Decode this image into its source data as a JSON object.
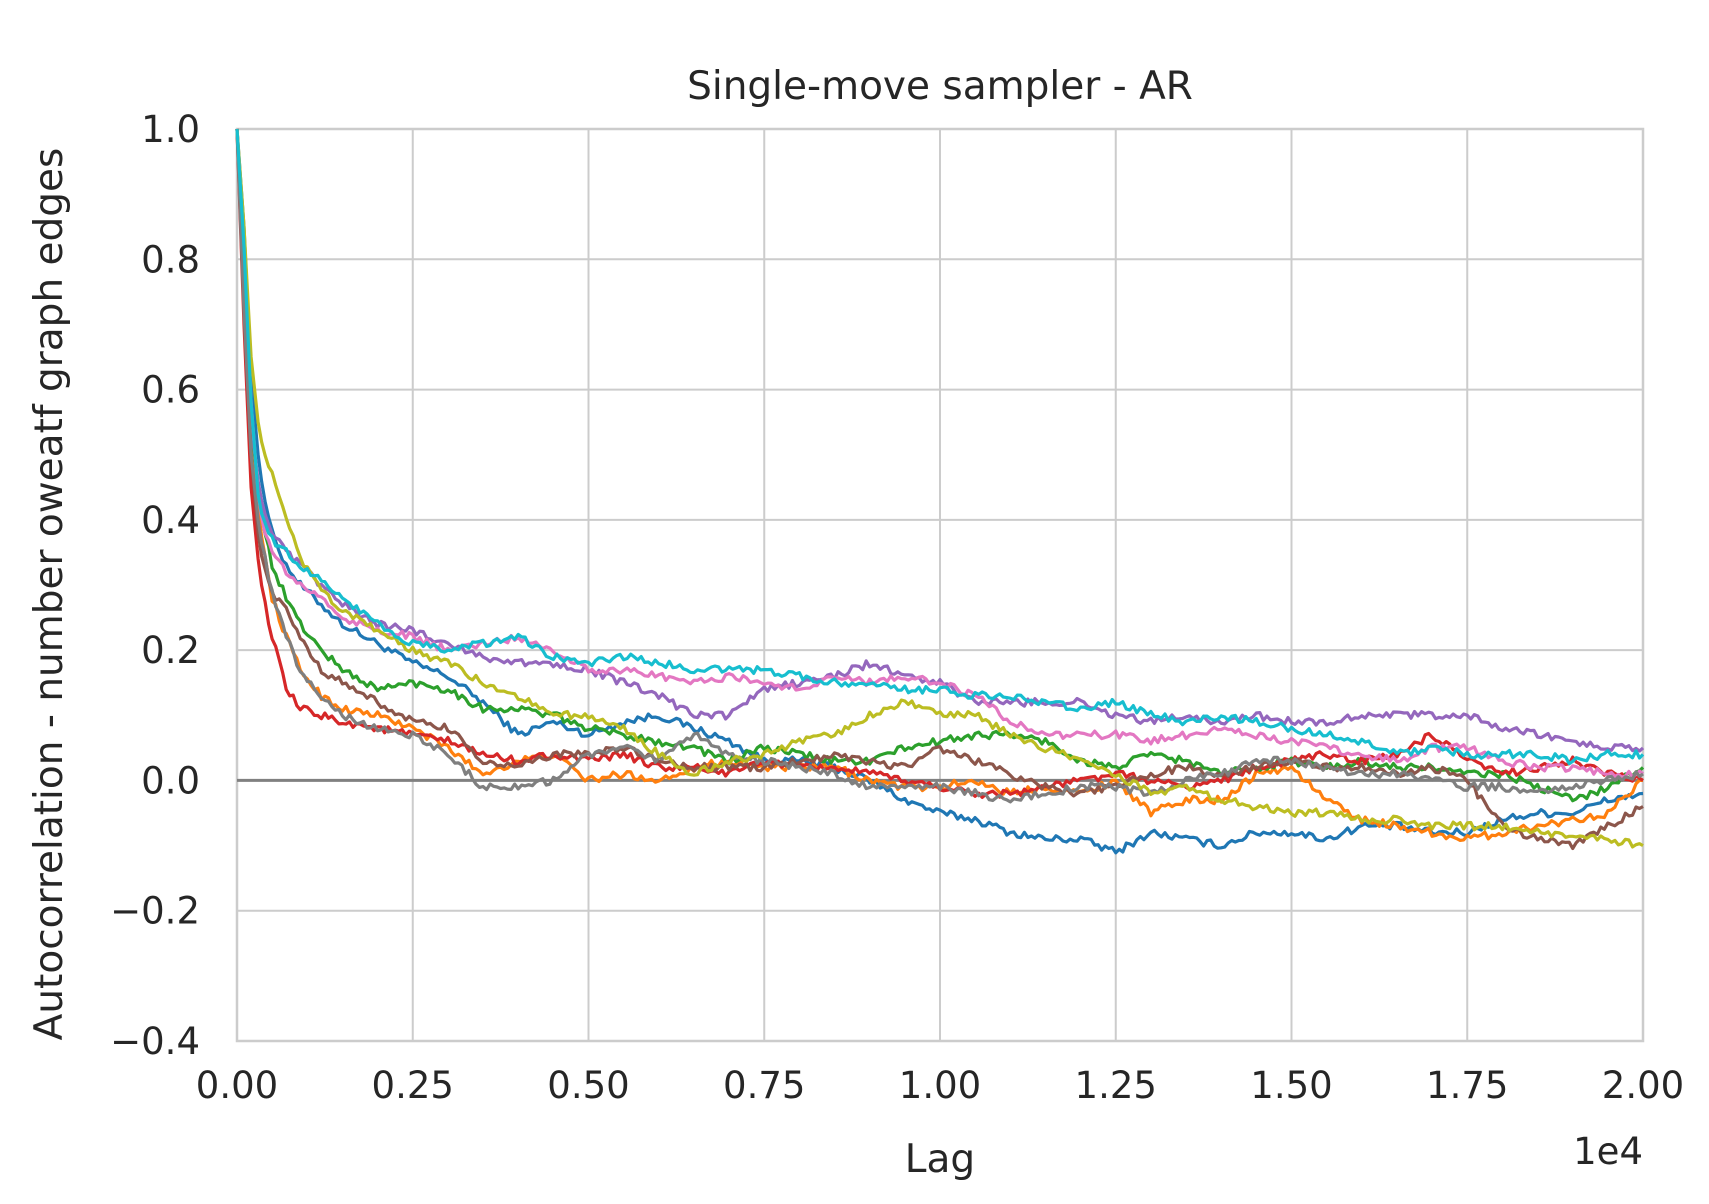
{
  "chart_data": {
    "type": "line",
    "title": "Single-move sampler - AR",
    "xlabel": "Lag",
    "ylabel": "Autocorrelation - number oweatf graph edges",
    "x_offset_label": "1e4",
    "xlim": [
      0,
      20000
    ],
    "ylim": [
      -0.4,
      1.0
    ],
    "xticks": [
      0,
      2500,
      5000,
      7500,
      10000,
      12500,
      15000,
      17500,
      20000
    ],
    "xtick_labels": [
      "0.00",
      "0.25",
      "0.50",
      "0.75",
      "1.00",
      "1.25",
      "1.50",
      "1.75",
      "2.00"
    ],
    "yticks": [
      1.0,
      0.8,
      0.6,
      0.4,
      0.2,
      0.0,
      -0.2,
      -0.4
    ],
    "ytick_labels": [
      "1.0",
      "0.8",
      "0.6",
      "0.4",
      "0.2",
      "0.0",
      "−0.2",
      "−0.4"
    ],
    "grid": true,
    "reference_line_y": 0.0,
    "reference_line_color": "#808080",
    "series": [
      {
        "color": "#1f77b4",
        "x": [
          0,
          100,
          200,
          300,
          400,
          500,
          700,
          900,
          1200,
          1500,
          2000,
          2500,
          3000,
          3500,
          4000,
          4500,
          5000,
          5500,
          6000,
          6500,
          7000,
          7500,
          8000,
          8500,
          9000,
          9500,
          10000,
          10500,
          11000,
          11500,
          12000,
          12500,
          13000,
          13500,
          14000,
          14500,
          15000,
          15500,
          16000,
          16500,
          17000,
          17500,
          18000,
          18500,
          19000,
          19500,
          20000
        ],
        "y": [
          1.0,
          0.85,
          0.62,
          0.5,
          0.43,
          0.38,
          0.33,
          0.3,
          0.27,
          0.24,
          0.21,
          0.18,
          0.16,
          0.12,
          0.07,
          0.09,
          0.07,
          0.09,
          0.1,
          0.08,
          0.06,
          0.03,
          0.03,
          0.02,
          0.0,
          -0.03,
          -0.05,
          -0.06,
          -0.08,
          -0.09,
          -0.09,
          -0.11,
          -0.08,
          -0.09,
          -0.1,
          -0.08,
          -0.08,
          -0.09,
          -0.07,
          -0.07,
          -0.08,
          -0.08,
          -0.06,
          -0.05,
          -0.05,
          -0.03,
          -0.02
        ]
      },
      {
        "color": "#ff7f0e",
        "x": [
          0,
          100,
          200,
          300,
          400,
          500,
          700,
          900,
          1200,
          1500,
          2000,
          2500,
          3000,
          3500,
          4000,
          4500,
          5000,
          5500,
          6000,
          6500,
          7000,
          7500,
          8000,
          8500,
          9000,
          9500,
          10000,
          10500,
          11000,
          11500,
          12000,
          12500,
          13000,
          13500,
          14000,
          14500,
          15000,
          15500,
          16000,
          16500,
          17000,
          17500,
          18000,
          18500,
          19000,
          19500,
          20000
        ],
        "y": [
          1.0,
          0.78,
          0.55,
          0.42,
          0.34,
          0.28,
          0.22,
          0.17,
          0.13,
          0.11,
          0.1,
          0.08,
          0.05,
          0.01,
          0.03,
          0.04,
          0.0,
          0.01,
          0.0,
          0.02,
          0.03,
          0.02,
          0.02,
          0.02,
          0.0,
          -0.01,
          -0.01,
          0.0,
          -0.02,
          -0.01,
          -0.02,
          0.0,
          -0.05,
          -0.03,
          -0.03,
          0.01,
          0.02,
          -0.03,
          -0.06,
          -0.07,
          -0.08,
          -0.09,
          -0.08,
          -0.07,
          -0.06,
          -0.05,
          0.0
        ]
      },
      {
        "color": "#2ca02c",
        "x": [
          0,
          100,
          200,
          300,
          400,
          500,
          700,
          900,
          1200,
          1500,
          2000,
          2500,
          3000,
          3500,
          4000,
          4500,
          5000,
          5500,
          6000,
          6500,
          7000,
          7500,
          8000,
          8500,
          9000,
          9500,
          10000,
          10500,
          11000,
          11500,
          12000,
          12500,
          13000,
          13500,
          14000,
          14500,
          15000,
          15500,
          16000,
          16500,
          17000,
          17500,
          18000,
          18500,
          19000,
          19500,
          20000
        ],
        "y": [
          1.0,
          0.8,
          0.55,
          0.45,
          0.38,
          0.33,
          0.28,
          0.24,
          0.2,
          0.17,
          0.14,
          0.15,
          0.14,
          0.11,
          0.11,
          0.1,
          0.08,
          0.07,
          0.06,
          0.05,
          0.03,
          0.05,
          0.04,
          0.03,
          0.03,
          0.05,
          0.06,
          0.07,
          0.07,
          0.06,
          0.03,
          0.02,
          0.04,
          0.03,
          0.01,
          0.02,
          0.03,
          0.02,
          0.03,
          0.02,
          0.02,
          0.01,
          0.01,
          -0.01,
          -0.03,
          -0.01,
          0.02
        ]
      },
      {
        "color": "#d62728",
        "x": [
          0,
          100,
          200,
          300,
          400,
          500,
          700,
          900,
          1200,
          1500,
          2000,
          2500,
          3000,
          3500,
          4000,
          4500,
          5000,
          5500,
          6000,
          6500,
          7000,
          7500,
          8000,
          8500,
          9000,
          9500,
          10000,
          10500,
          11000,
          11500,
          12000,
          12500,
          13000,
          13500,
          14000,
          14500,
          15000,
          15500,
          16000,
          16500,
          17000,
          17500,
          18000,
          18500,
          19000,
          19500,
          20000
        ],
        "y": [
          1.0,
          0.7,
          0.45,
          0.34,
          0.27,
          0.22,
          0.14,
          0.11,
          0.1,
          0.09,
          0.08,
          0.07,
          0.06,
          0.04,
          0.03,
          0.04,
          0.03,
          0.04,
          0.02,
          0.02,
          0.01,
          0.03,
          0.02,
          0.02,
          0.01,
          0.0,
          -0.01,
          -0.02,
          -0.02,
          -0.01,
          0.0,
          0.01,
          0.0,
          -0.01,
          0.0,
          0.02,
          0.03,
          0.04,
          0.03,
          0.04,
          0.07,
          0.03,
          0.01,
          0.02,
          0.03,
          0.01,
          0.0
        ]
      },
      {
        "color": "#9467bd",
        "x": [
          0,
          100,
          200,
          300,
          400,
          500,
          700,
          900,
          1200,
          1500,
          2000,
          2500,
          3000,
          3500,
          4000,
          4500,
          5000,
          5500,
          6000,
          6500,
          7000,
          7500,
          8000,
          8500,
          9000,
          9500,
          10000,
          10500,
          11000,
          11500,
          12000,
          12500,
          13000,
          13500,
          14000,
          14500,
          15000,
          15500,
          16000,
          16500,
          17000,
          17500,
          18000,
          18500,
          19000,
          19500,
          20000
        ],
        "y": [
          1.0,
          0.8,
          0.55,
          0.46,
          0.41,
          0.38,
          0.35,
          0.33,
          0.3,
          0.27,
          0.24,
          0.23,
          0.21,
          0.19,
          0.18,
          0.18,
          0.17,
          0.15,
          0.13,
          0.1,
          0.1,
          0.14,
          0.15,
          0.16,
          0.18,
          0.16,
          0.15,
          0.12,
          0.12,
          0.12,
          0.12,
          0.1,
          0.09,
          0.1,
          0.09,
          0.1,
          0.09,
          0.09,
          0.1,
          0.1,
          0.1,
          0.1,
          0.08,
          0.07,
          0.06,
          0.05,
          0.05
        ]
      },
      {
        "color": "#8c564b",
        "x": [
          0,
          100,
          200,
          300,
          400,
          500,
          700,
          900,
          1200,
          1500,
          2000,
          2500,
          3000,
          3500,
          4000,
          4500,
          5000,
          5500,
          6000,
          6500,
          7000,
          7500,
          8000,
          8500,
          9000,
          9500,
          10000,
          10500,
          11000,
          11500,
          12000,
          12500,
          13000,
          13500,
          14000,
          14500,
          15000,
          15500,
          16000,
          16500,
          17000,
          17500,
          18000,
          18500,
          19000,
          19500,
          20000
        ],
        "y": [
          1.0,
          0.75,
          0.5,
          0.38,
          0.32,
          0.29,
          0.26,
          0.22,
          0.17,
          0.15,
          0.12,
          0.09,
          0.08,
          0.03,
          0.02,
          0.04,
          0.04,
          0.05,
          0.03,
          0.02,
          0.02,
          0.02,
          0.03,
          0.04,
          0.03,
          0.02,
          0.05,
          0.03,
          0.01,
          -0.01,
          -0.02,
          -0.01,
          0.01,
          0.02,
          0.01,
          0.02,
          0.03,
          0.02,
          0.02,
          0.01,
          0.02,
          0.0,
          -0.07,
          -0.09,
          -0.1,
          -0.07,
          -0.04
        ]
      },
      {
        "color": "#e377c2",
        "x": [
          0,
          100,
          200,
          300,
          400,
          500,
          700,
          900,
          1200,
          1500,
          2000,
          2500,
          3000,
          3500,
          4000,
          4500,
          5000,
          5500,
          6000,
          6500,
          7000,
          7500,
          8000,
          8500,
          9000,
          9500,
          10000,
          10500,
          11000,
          11500,
          12000,
          12500,
          13000,
          13500,
          14000,
          14500,
          15000,
          15500,
          16000,
          16500,
          17000,
          17500,
          18000,
          18500,
          19000,
          19500,
          20000
        ],
        "y": [
          1.0,
          0.82,
          0.58,
          0.44,
          0.38,
          0.35,
          0.32,
          0.3,
          0.28,
          0.25,
          0.23,
          0.22,
          0.2,
          0.21,
          0.22,
          0.2,
          0.17,
          0.17,
          0.16,
          0.15,
          0.16,
          0.15,
          0.14,
          0.16,
          0.15,
          0.16,
          0.15,
          0.13,
          0.09,
          0.07,
          0.07,
          0.07,
          0.06,
          0.07,
          0.08,
          0.07,
          0.06,
          0.05,
          0.04,
          0.03,
          0.05,
          0.05,
          0.03,
          0.02,
          0.02,
          0.01,
          0.01
        ]
      },
      {
        "color": "#7f7f7f",
        "x": [
          0,
          100,
          200,
          300,
          400,
          500,
          700,
          900,
          1200,
          1500,
          2000,
          2500,
          3000,
          3500,
          4000,
          4500,
          5000,
          5500,
          6000,
          6500,
          7000,
          7500,
          8000,
          8500,
          9000,
          9500,
          10000,
          10500,
          11000,
          11500,
          12000,
          12500,
          13000,
          13500,
          14000,
          14500,
          15000,
          15500,
          16000,
          16500,
          17000,
          17500,
          18000,
          18500,
          19000,
          19500,
          20000
        ],
        "y": [
          1.0,
          0.72,
          0.5,
          0.4,
          0.34,
          0.29,
          0.22,
          0.17,
          0.13,
          0.1,
          0.08,
          0.07,
          0.04,
          -0.01,
          -0.01,
          0.0,
          0.04,
          0.05,
          0.03,
          0.07,
          0.04,
          0.03,
          0.02,
          0.01,
          -0.01,
          -0.01,
          -0.01,
          -0.02,
          -0.03,
          -0.02,
          -0.01,
          -0.01,
          -0.02,
          0.0,
          0.01,
          0.03,
          0.03,
          0.02,
          0.01,
          0.01,
          0.0,
          -0.01,
          -0.01,
          -0.02,
          -0.01,
          0.0,
          0.01
        ]
      },
      {
        "color": "#bcbd22",
        "x": [
          0,
          100,
          200,
          300,
          400,
          500,
          700,
          900,
          1200,
          1500,
          2000,
          2500,
          3000,
          3500,
          4000,
          4500,
          5000,
          5500,
          6000,
          6500,
          7000,
          7500,
          8000,
          8500,
          9000,
          9500,
          10000,
          10500,
          11000,
          11500,
          12000,
          12500,
          13000,
          13500,
          14000,
          14500,
          15000,
          15500,
          16000,
          16500,
          17000,
          17500,
          18000,
          18500,
          19000,
          19500,
          20000
        ],
        "y": [
          1.0,
          0.85,
          0.65,
          0.55,
          0.5,
          0.47,
          0.4,
          0.34,
          0.29,
          0.26,
          0.23,
          0.2,
          0.18,
          0.15,
          0.13,
          0.1,
          0.1,
          0.08,
          0.04,
          0.01,
          0.03,
          0.04,
          0.06,
          0.07,
          0.1,
          0.12,
          0.1,
          0.1,
          0.07,
          0.05,
          0.03,
          0.01,
          -0.02,
          -0.01,
          -0.03,
          -0.04,
          -0.05,
          -0.05,
          -0.06,
          -0.06,
          -0.07,
          -0.07,
          -0.07,
          -0.08,
          -0.09,
          -0.09,
          -0.1
        ]
      },
      {
        "color": "#17becf",
        "x": [
          0,
          100,
          200,
          300,
          400,
          500,
          700,
          900,
          1200,
          1500,
          2000,
          2500,
          3000,
          3500,
          4000,
          4500,
          5000,
          5500,
          6000,
          6500,
          7000,
          7500,
          8000,
          8500,
          9000,
          9500,
          10000,
          10500,
          11000,
          11500,
          12000,
          12500,
          13000,
          13500,
          14000,
          14500,
          15000,
          15500,
          16000,
          16500,
          17000,
          17500,
          18000,
          18500,
          19000,
          19500,
          20000
        ],
        "y": [
          1.0,
          0.82,
          0.58,
          0.44,
          0.39,
          0.37,
          0.35,
          0.33,
          0.31,
          0.28,
          0.24,
          0.21,
          0.2,
          0.21,
          0.22,
          0.19,
          0.18,
          0.19,
          0.18,
          0.17,
          0.17,
          0.17,
          0.16,
          0.15,
          0.15,
          0.14,
          0.14,
          0.13,
          0.13,
          0.12,
          0.11,
          0.12,
          0.1,
          0.09,
          0.1,
          0.09,
          0.08,
          0.07,
          0.06,
          0.04,
          0.05,
          0.04,
          0.04,
          0.04,
          0.03,
          0.04,
          0.04
        ]
      }
    ]
  }
}
